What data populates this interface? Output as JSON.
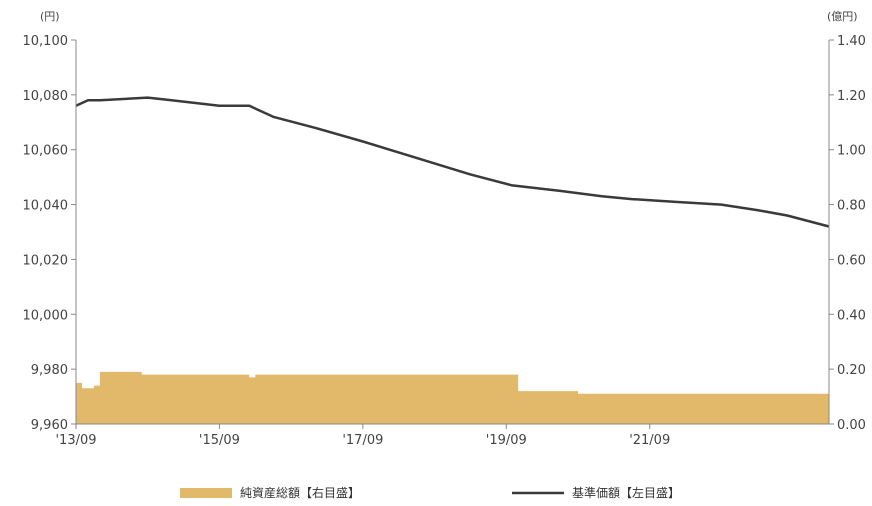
{
  "chart_data": {
    "type": "line",
    "left_axis": {
      "unit_label": "(円)",
      "range": [
        9960,
        10100
      ],
      "ticks": [
        "10,100",
        "10,080",
        "10,060",
        "10,040",
        "10,020",
        "10,000",
        "9,980",
        "9,960"
      ]
    },
    "right_axis": {
      "unit_label": "(億円)",
      "range": [
        0,
        1.4
      ],
      "ticks": [
        "1.40",
        "1.20",
        "1.00",
        "0.80",
        "0.60",
        "0.40",
        "0.20",
        "0.00"
      ]
    },
    "x_axis": {
      "range": [
        "2013-09",
        "2024-03"
      ],
      "tick_positions": [
        "2013-09",
        "2015-09",
        "2017-09",
        "2019-09",
        "2021-09"
      ],
      "tick_labels": [
        "'13/09",
        "'15/09",
        "'17/09",
        "'19/09",
        "'21/09"
      ]
    },
    "series": [
      {
        "name": "純資産総額【右目盛】",
        "kind": "area",
        "axis": "right",
        "color": "#E2B96A",
        "points": [
          [
            "2013-09",
            0.15
          ],
          [
            "2013-10",
            0.13
          ],
          [
            "2013-12",
            0.14
          ],
          [
            "2014-01",
            0.19
          ],
          [
            "2014-04",
            0.19
          ],
          [
            "2014-08",
            0.18
          ],
          [
            "2015-09",
            0.18
          ],
          [
            "2016-02",
            0.17
          ],
          [
            "2016-03",
            0.18
          ],
          [
            "2019-10",
            0.18
          ],
          [
            "2019-11",
            0.12
          ],
          [
            "2020-07",
            0.12
          ],
          [
            "2020-09",
            0.11
          ],
          [
            "2024-03",
            0.11
          ]
        ]
      },
      {
        "name": "基準価額【左目盛】",
        "kind": "line",
        "axis": "left",
        "color": "#3a3a3a",
        "points": [
          [
            "2013-09",
            10076
          ],
          [
            "2013-11",
            10078
          ],
          [
            "2014-01",
            10078
          ],
          [
            "2014-09",
            10079
          ],
          [
            "2015-01",
            10078
          ],
          [
            "2015-09",
            10076
          ],
          [
            "2016-02",
            10076
          ],
          [
            "2016-06",
            10072
          ],
          [
            "2017-01",
            10068
          ],
          [
            "2017-09",
            10063
          ],
          [
            "2018-06",
            10057
          ],
          [
            "2019-03",
            10051
          ],
          [
            "2019-10",
            10047
          ],
          [
            "2020-06",
            10045
          ],
          [
            "2021-01",
            10043
          ],
          [
            "2021-06",
            10042
          ],
          [
            "2022-01",
            10041
          ],
          [
            "2022-09",
            10040
          ],
          [
            "2023-03",
            10038
          ],
          [
            "2023-08",
            10036
          ],
          [
            "2024-03",
            10032
          ]
        ]
      }
    ],
    "legend_position": "bottom",
    "grid": false
  }
}
